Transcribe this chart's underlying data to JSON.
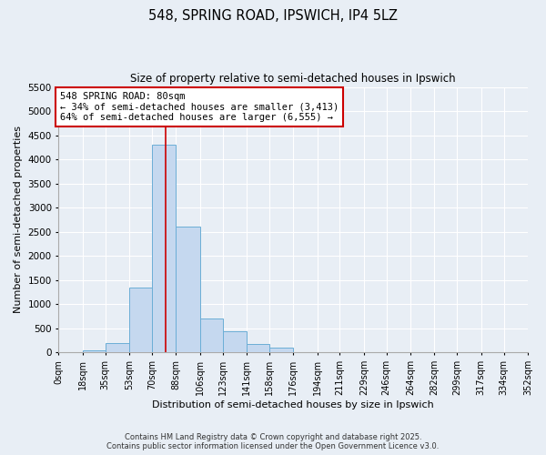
{
  "title_line1": "548, SPRING ROAD, IPSWICH, IP4 5LZ",
  "title_line2": "Size of property relative to semi-detached houses in Ipswich",
  "annotation_line1": "548 SPRING ROAD: 80sqm",
  "annotation_line2": "← 34% of semi-detached houses are smaller (3,413)",
  "annotation_line3": "64% of semi-detached houses are larger (6,555) →",
  "xlabel": "Distribution of semi-detached houses by size in Ipswich",
  "ylabel": "Number of semi-detached properties",
  "property_size": 80,
  "bar_edges": [
    0,
    18,
    35,
    53,
    70,
    88,
    106,
    123,
    141,
    158,
    176,
    194,
    211,
    229,
    246,
    264,
    282,
    299,
    317,
    334,
    352
  ],
  "bar_heights": [
    2,
    50,
    200,
    1350,
    4300,
    2600,
    700,
    450,
    180,
    100,
    0,
    0,
    0,
    0,
    0,
    0,
    0,
    0,
    0,
    0
  ],
  "bar_color": "#c5d8ef",
  "bar_edge_color": "#6baed6",
  "vline_color": "#cc0000",
  "annotation_box_color": "#cc0000",
  "background_color": "#e8eef5",
  "grid_color": "#ffffff",
  "ylim": [
    0,
    5500
  ],
  "yticks": [
    0,
    500,
    1000,
    1500,
    2000,
    2500,
    3000,
    3500,
    4000,
    4500,
    5000,
    5500
  ],
  "tick_labels": [
    "0sqm",
    "18sqm",
    "35sqm",
    "53sqm",
    "70sqm",
    "88sqm",
    "106sqm",
    "123sqm",
    "141sqm",
    "158sqm",
    "176sqm",
    "194sqm",
    "211sqm",
    "229sqm",
    "246sqm",
    "264sqm",
    "282sqm",
    "299sqm",
    "317sqm",
    "334sqm",
    "352sqm"
  ],
  "footer_line1": "Contains HM Land Registry data © Crown copyright and database right 2025.",
  "footer_line2": "Contains public sector information licensed under the Open Government Licence v3.0."
}
